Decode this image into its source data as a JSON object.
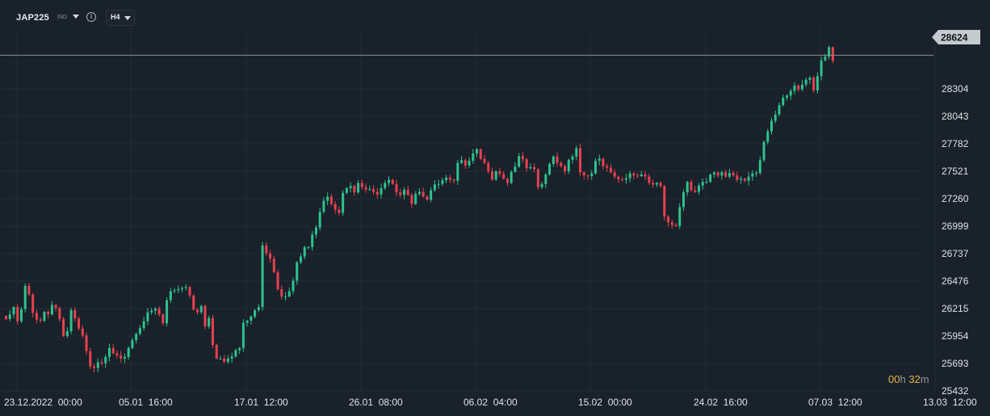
{
  "toolbar": {
    "symbol": "JAP225",
    "market": "IND",
    "info_icon": "info-icon",
    "timeframe": "H4"
  },
  "current_price_label": "28624",
  "countdown": {
    "hours": "00",
    "h_unit": "h",
    "minutes": "32",
    "m_unit": "m"
  },
  "colors": {
    "up": "#2ec28e",
    "down": "#e8414f",
    "background": "#19212a",
    "grid": "#222c36",
    "price_tag": "#c5cace"
  },
  "chart_data": {
    "type": "candlestick",
    "ylim": [
      25432,
      28880
    ],
    "y_ticks": [
      25432,
      25693,
      25954,
      26215,
      26476,
      26737,
      26999,
      27260,
      27521,
      27782,
      28043,
      28304,
      28624
    ],
    "x_tick_labels": [
      "23.12.2022  00:00",
      "05.01  16:00",
      "17.01  12:00",
      "26.01  08:00",
      "06.02  04:00",
      "15.02  00:00",
      "24.02  16:00",
      "07.03  12:00",
      "13.03  12:00"
    ],
    "current_price": 28624,
    "closes": [
      26115,
      26160,
      26230,
      26095,
      26210,
      26430,
      26350,
      26175,
      26110,
      26100,
      26185,
      26160,
      26250,
      26220,
      26115,
      25955,
      26000,
      26200,
      26120,
      26025,
      25960,
      25810,
      25665,
      25650,
      25705,
      25695,
      25755,
      25840,
      25790,
      25770,
      25740,
      25755,
      25840,
      25915,
      25975,
      26030,
      26095,
      26180,
      26195,
      26215,
      26160,
      26075,
      26295,
      26380,
      26390,
      26400,
      26410,
      26420,
      26340,
      26205,
      26180,
      26240,
      26045,
      26125,
      25870,
      25740,
      25740,
      25710,
      25740,
      25760,
      25820,
      25840,
      26080,
      26100,
      26140,
      26200,
      26230,
      26815,
      26740,
      26690,
      26560,
      26400,
      26330,
      26330,
      26380,
      26480,
      26655,
      26710,
      26800,
      26800,
      26920,
      26985,
      27135,
      27240,
      27280,
      27210,
      27155,
      27125,
      27315,
      27360,
      27380,
      27320,
      27410,
      27370,
      27345,
      27350,
      27325,
      27300,
      27360,
      27410,
      27440,
      27400,
      27320,
      27295,
      27345,
      27295,
      27210,
      27305,
      27325,
      27280,
      27250,
      27340,
      27395,
      27400,
      27435,
      27460,
      27440,
      27430,
      27600,
      27625,
      27575,
      27620,
      27690,
      27730,
      27640,
      27600,
      27520,
      27440,
      27520,
      27495,
      27450,
      27410,
      27515,
      27565,
      27665,
      27635,
      27550,
      27560,
      27540,
      27370,
      27400,
      27490,
      27590,
      27660,
      27600,
      27570,
      27520,
      27630,
      27660,
      27740,
      27510,
      27480,
      27475,
      27500,
      27620,
      27640,
      27570,
      27555,
      27510,
      27470,
      27445,
      27440,
      27455,
      27500,
      27480,
      27475,
      27490,
      27470,
      27410,
      27395,
      27410,
      27380,
      27090,
      27035,
      27010,
      27000,
      27180,
      27320,
      27420,
      27340,
      27325,
      27385,
      27420,
      27420,
      27490,
      27510,
      27480,
      27510,
      27470,
      27505,
      27480,
      27440,
      27450,
      27430,
      27470,
      27500,
      27505,
      27625,
      27800,
      27900,
      28000,
      28060,
      28150,
      28220,
      28240,
      28285,
      28335,
      28300,
      28345,
      28390,
      28410,
      28290,
      28425,
      28575,
      28610,
      28700,
      28570
    ]
  }
}
